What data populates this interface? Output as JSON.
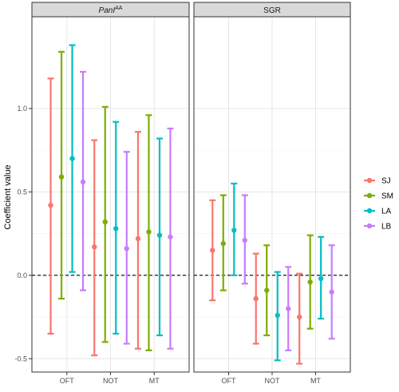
{
  "chart_data": {
    "type": "errorbar",
    "ylabel": "Coefficient value",
    "xlabel": "",
    "ylim": [
      -0.58,
      1.55
    ],
    "y_ticks": [
      -0.5,
      0.0,
      0.5,
      1.0
    ],
    "y_tick_labels": [
      "-0.5",
      "0.0",
      "0.5",
      "1.0"
    ],
    "reference_line": 0,
    "categories": [
      "OFT",
      "NOT",
      "MT"
    ],
    "series": [
      {
        "name": "SJ",
        "color": "#F8766D"
      },
      {
        "name": "SM",
        "color": "#7CAE00"
      },
      {
        "name": "LA",
        "color": "#00BFC4"
      },
      {
        "name": "LB",
        "color": "#C77CFF"
      }
    ],
    "panels": [
      {
        "title_main": "PanI",
        "title_sup": "AA",
        "points": {
          "OFT": [
            {
              "est": 0.42,
              "lo": -0.35,
              "hi": 1.18
            },
            {
              "est": 0.59,
              "lo": -0.14,
              "hi": 1.34
            },
            {
              "est": 0.7,
              "lo": 0.02,
              "hi": 1.38
            },
            {
              "est": 0.56,
              "lo": -0.09,
              "hi": 1.22
            }
          ],
          "NOT": [
            {
              "est": 0.17,
              "lo": -0.48,
              "hi": 0.81
            },
            {
              "est": 0.32,
              "lo": -0.4,
              "hi": 1.01
            },
            {
              "est": 0.28,
              "lo": -0.35,
              "hi": 0.92
            },
            {
              "est": 0.16,
              "lo": -0.41,
              "hi": 0.74
            }
          ],
          "MT": [
            {
              "est": 0.22,
              "lo": -0.44,
              "hi": 0.86
            },
            {
              "est": 0.26,
              "lo": -0.45,
              "hi": 0.96
            },
            {
              "est": 0.24,
              "lo": -0.36,
              "hi": 0.82
            },
            {
              "est": 0.23,
              "lo": -0.44,
              "hi": 0.88
            }
          ]
        }
      },
      {
        "title_main": "SGR",
        "title_sup": "",
        "points": {
          "OFT": [
            {
              "est": 0.15,
              "lo": -0.15,
              "hi": 0.45
            },
            {
              "est": 0.19,
              "lo": -0.09,
              "hi": 0.48
            },
            {
              "est": 0.27,
              "lo": 0.0,
              "hi": 0.55
            },
            {
              "est": 0.21,
              "lo": -0.05,
              "hi": 0.48
            }
          ],
          "NOT": [
            {
              "est": -0.14,
              "lo": -0.41,
              "hi": 0.13
            },
            {
              "est": -0.09,
              "lo": -0.36,
              "hi": 0.18
            },
            {
              "est": -0.24,
              "lo": -0.51,
              "hi": 0.02
            },
            {
              "est": -0.2,
              "lo": -0.45,
              "hi": 0.05
            }
          ],
          "MT": [
            {
              "est": -0.25,
              "lo": -0.53,
              "hi": 0.01
            },
            {
              "est": -0.04,
              "lo": -0.32,
              "hi": 0.24
            },
            {
              "est": -0.02,
              "lo": -0.26,
              "hi": 0.23
            },
            {
              "est": -0.1,
              "lo": -0.38,
              "hi": 0.18
            }
          ]
        }
      }
    ],
    "legend_placement": "right",
    "grid": true
  }
}
